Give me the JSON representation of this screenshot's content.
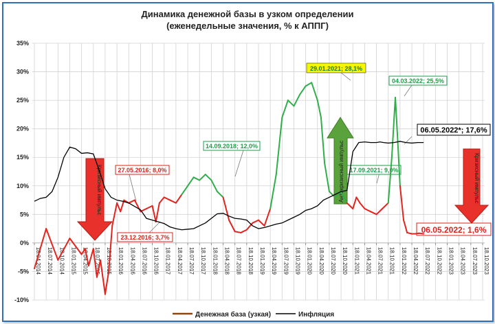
{
  "chart_data": {
    "type": "line",
    "title_line1": "Динамика денежной базы в узком определении",
    "title_line2": "(еженедельные значения, % к АППГ)",
    "y_axis": {
      "min": -10,
      "max": 35,
      "step": 5,
      "tick_labels": [
        "-10%",
        "-5%",
        "0%",
        "5%",
        "10%",
        "15%",
        "20%",
        "25%",
        "30%",
        "35%"
      ],
      "grid": true
    },
    "x_axis": {
      "tick_labels": [
        "18.04.2014",
        "18.07.2014",
        "18.10.2014",
        "18.01.2015",
        "18.04.2015",
        "18.07.2015",
        "18.10.2015",
        "18.01.2016",
        "18.04.2016",
        "18.07.2016",
        "18.10.2016",
        "18.01.2017",
        "18.04.2017",
        "18.07.2017",
        "18.10.2017",
        "18.01.2018",
        "18.04.2018",
        "18.07.2018",
        "18.10.2018",
        "18.01.2019",
        "18.04.2019",
        "18.07.2019",
        "18.10.2019",
        "18.01.2020",
        "18.04.2020",
        "18.07.2020",
        "18.10.2020",
        "18.01.2021",
        "18.04.2021",
        "18.07.2021",
        "18.10.2021",
        "18.01.2022",
        "18.04.2022",
        "18.07.2022",
        "18.10.2022",
        "18.01.2023",
        "18.04.2023",
        "18.07.2023",
        "18.10.2023"
      ]
    },
    "legend": {
      "position": "bottom",
      "items": [
        {
          "name": "Денежная база (узкая)",
          "color": "#8b4513"
        },
        {
          "name": "Инфляция",
          "color": "#000000"
        }
      ]
    },
    "series": [
      {
        "name": "Денежная база (узкая)",
        "x": [
          0,
          1,
          2,
          3,
          4,
          4.3,
          4.6,
          5,
          5.3,
          5.6,
          6,
          6.3,
          6.6,
          7,
          7.3,
          7.6,
          8,
          8.5,
          9,
          9.5,
          10,
          10.3,
          10.6,
          11,
          11.5,
          12,
          12.5,
          13,
          13.5,
          14,
          14.5,
          15,
          15.5,
          16,
          16.5,
          17,
          17.5,
          18,
          18.5,
          19,
          19.5,
          20,
          20.5,
          21,
          21.5,
          22,
          22.5,
          23,
          23.5,
          24,
          24.3,
          24.6,
          25,
          25.5,
          26,
          26.5,
          27,
          27.3,
          27.6,
          28,
          28.5,
          29,
          29.5,
          30,
          30.3,
          30.6,
          30.8,
          31,
          31.3,
          31.6,
          32,
          32.3,
          32.6,
          33
        ],
        "y": [
          -4.5,
          2.5,
          -3,
          0.8,
          -2,
          -1,
          -4,
          -1,
          -6,
          -3,
          -9,
          -5,
          3,
          7,
          5.5,
          7.5,
          7,
          7.5,
          5.5,
          6,
          6.5,
          3.7,
          7,
          8,
          7.5,
          7,
          8.5,
          10,
          11.5,
          11,
          12,
          11,
          9,
          8,
          4,
          2,
          1.8,
          2.3,
          3.5,
          4,
          3,
          6,
          12,
          22,
          25,
          24,
          26,
          27.5,
          28.1,
          25,
          22,
          14,
          9,
          8,
          9,
          7,
          6,
          8,
          7,
          6,
          5.5,
          5,
          6,
          7,
          15,
          25.5,
          18,
          10,
          4,
          1.8,
          1.6,
          1.6,
          1.7,
          1.6
        ]
      },
      {
        "name": "Инфляция",
        "x": [
          0,
          0.5,
          1,
          1.5,
          2,
          2.5,
          3,
          3.5,
          4,
          4.5,
          5,
          5.5,
          6,
          6.5,
          7,
          7.5,
          8,
          8.5,
          9,
          9.5,
          10,
          10.5,
          11,
          11.5,
          12,
          12.5,
          13,
          13.5,
          14,
          14.5,
          15,
          15.5,
          16,
          16.5,
          17,
          17.5,
          18,
          18.5,
          19,
          19.5,
          20,
          20.5,
          21,
          21.5,
          22,
          22.5,
          23,
          23.5,
          24,
          24.5,
          25,
          25.5,
          26,
          26.5,
          27,
          27.5,
          28,
          28.5,
          29,
          29.3,
          29.6,
          30,
          30.5,
          31,
          31.5,
          32,
          32.5,
          33
        ],
        "y": [
          7.3,
          7.8,
          8,
          9,
          11.5,
          15,
          16.8,
          16.5,
          15.7,
          15.8,
          15.6,
          12.7,
          9.5,
          8,
          7.5,
          7.3,
          7,
          6.4,
          5.8,
          4.3,
          4,
          3.7,
          3.4,
          2.8,
          2.5,
          2.3,
          2.4,
          2.5,
          3,
          3.5,
          4.3,
          5.1,
          5.2,
          4.7,
          4.3,
          4.2,
          4,
          3,
          2.5,
          2.7,
          3,
          3.3,
          3.5,
          4,
          4.5,
          5,
          5.7,
          6,
          6.5,
          7.5,
          8,
          8.5,
          9,
          9.2,
          16,
          17.6,
          17.7,
          17.6,
          17.6,
          17.7,
          17.6,
          17.5,
          17.6,
          17.8,
          17.6,
          17.5,
          17.6,
          17.6
        ]
      }
    ],
    "annotations": [
      {
        "text": "27.05.2016; 8,0%",
        "color": "#e0201b"
      },
      {
        "text": "23.12.2016; 3,7%",
        "color": "#e0201b"
      },
      {
        "text": "14.09.2018; 12,0%",
        "color": "#1e9e4a"
      },
      {
        "text": "29.01.2021; 28,1%",
        "color": "#1e7a30"
      },
      {
        "text": "17.09.2021; 9,0%",
        "color": "#1e9e4a"
      },
      {
        "text": "04.03.2022; 25,5%",
        "color": "#1e9e4a"
      },
      {
        "text": "06.05.2022*; 17,6%",
        "color": "#000000"
      },
      {
        "text": "06.05.2022; 1,6%",
        "color": "#e0201b"
      }
    ],
    "arrows": [
      {
        "text": "Кризисный импульс",
        "color": "#e8312a",
        "direction": "down"
      },
      {
        "text": "Антикризисный импульс",
        "color": "#5aa33c",
        "direction": "up"
      },
      {
        "text": "Кризисный импульс",
        "color": "#e8312a",
        "direction": "down"
      }
    ]
  }
}
